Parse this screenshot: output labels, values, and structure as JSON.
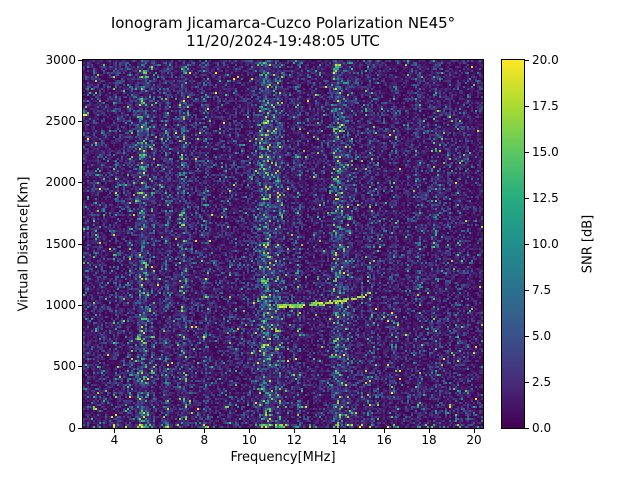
{
  "figure": {
    "title": "Ionogram Jicamarca-Cuzco Polarization NE45°",
    "subtitle": "11/20/2024-19:48:05 UTC",
    "background": "#ffffff"
  },
  "chart_data": {
    "type": "heatmap",
    "title": "Ionogram Jicamarca-Cuzco Polarization NE45°",
    "subtitle": "11/20/2024-19:48:05 UTC",
    "xlabel": "Frequency[MHz]",
    "ylabel": "Virtual Distance[Km]",
    "xlim": [
      2.6,
      20.4
    ],
    "ylim": [
      0,
      3000
    ],
    "grid": false,
    "xticks": {
      "values": [
        4,
        6,
        8,
        10,
        12,
        14,
        16,
        18,
        20
      ],
      "labels": [
        "4",
        "6",
        "8",
        "10",
        "12",
        "14",
        "16",
        "18",
        "20"
      ]
    },
    "yticks": {
      "values": [
        0,
        500,
        1000,
        1500,
        2000,
        2500,
        3000
      ],
      "labels": [
        "0",
        "500",
        "1000",
        "1500",
        "2000",
        "2500",
        "3000"
      ]
    },
    "colorbar": {
      "label": "SNR [dB]",
      "range": [
        0,
        20
      ],
      "position": "right",
      "ticks": {
        "values": [
          0,
          2.5,
          5,
          7.5,
          10,
          12.5,
          15,
          17.5,
          20
        ],
        "labels": [
          "0.0",
          "2.5",
          "5.0",
          "7.5",
          "10.0",
          "12.5",
          "15.0",
          "17.5",
          "20.0"
        ]
      }
    },
    "colormap": {
      "name": "viridis",
      "stops": [
        [
          0.0,
          68,
          1,
          84
        ],
        [
          0.125,
          71,
          45,
          123
        ],
        [
          0.25,
          59,
          82,
          139
        ],
        [
          0.375,
          44,
          113,
          142
        ],
        [
          0.5,
          33,
          144,
          141
        ],
        [
          0.625,
          39,
          173,
          129
        ],
        [
          0.75,
          92,
          200,
          99
        ],
        [
          0.875,
          170,
          220,
          50
        ],
        [
          1.0,
          253,
          231,
          37
        ]
      ]
    },
    "noise": {
      "seed": 20241120,
      "mean_db": 1.8,
      "speckle_fraction": 0.012,
      "speckle_db": [
        8,
        20
      ]
    },
    "interference_bands": [
      {
        "freq": 3.2,
        "width": 0.15,
        "strength": 0.25
      },
      {
        "freq": 4.05,
        "width": 0.1,
        "strength": 0.15
      },
      {
        "freq": 4.65,
        "width": 0.12,
        "strength": 0.2
      },
      {
        "freq": 5.25,
        "width": 0.22,
        "strength": 0.8
      },
      {
        "freq": 5.7,
        "width": 0.12,
        "strength": 0.4
      },
      {
        "freq": 6.35,
        "width": 0.15,
        "strength": 0.35
      },
      {
        "freq": 7.05,
        "width": 0.18,
        "strength": 0.55
      },
      {
        "freq": 8.1,
        "width": 0.12,
        "strength": 0.2
      },
      {
        "freq": 9.05,
        "width": 0.1,
        "strength": 0.15
      },
      {
        "freq": 10.0,
        "width": 0.1,
        "strength": 0.15
      },
      {
        "freq": 10.75,
        "width": 0.3,
        "strength": 0.85
      },
      {
        "freq": 11.3,
        "width": 0.18,
        "strength": 0.65
      },
      {
        "freq": 12.15,
        "width": 0.15,
        "strength": 0.3
      },
      {
        "freq": 13.05,
        "width": 0.12,
        "strength": 0.2
      },
      {
        "freq": 13.95,
        "width": 0.25,
        "strength": 0.75
      },
      {
        "freq": 14.4,
        "width": 0.15,
        "strength": 0.4
      },
      {
        "freq": 15.35,
        "width": 0.12,
        "strength": 0.3
      },
      {
        "freq": 16.45,
        "width": 0.12,
        "strength": 0.2
      },
      {
        "freq": 17.6,
        "width": 0.15,
        "strength": 0.25
      },
      {
        "freq": 18.3,
        "width": 0.15,
        "strength": 0.3
      },
      {
        "freq": 19.35,
        "width": 0.12,
        "strength": 0.18
      }
    ],
    "echo_trace": {
      "points_mhz_km": [
        [
          11.25,
          990
        ],
        [
          11.9,
          995
        ],
        [
          12.6,
          1003
        ],
        [
          13.3,
          1015
        ],
        [
          14.0,
          1032
        ],
        [
          14.7,
          1058
        ],
        [
          15.1,
          1078
        ],
        [
          15.45,
          1105
        ]
      ],
      "snr_db": [
        14,
        20
      ],
      "halfwidth_km": 14,
      "dash_density": 0.85
    },
    "ground_clutter": {
      "max_km": 30,
      "snr_db": [
        10,
        20
      ],
      "extra_fraction": 0.04
    }
  }
}
